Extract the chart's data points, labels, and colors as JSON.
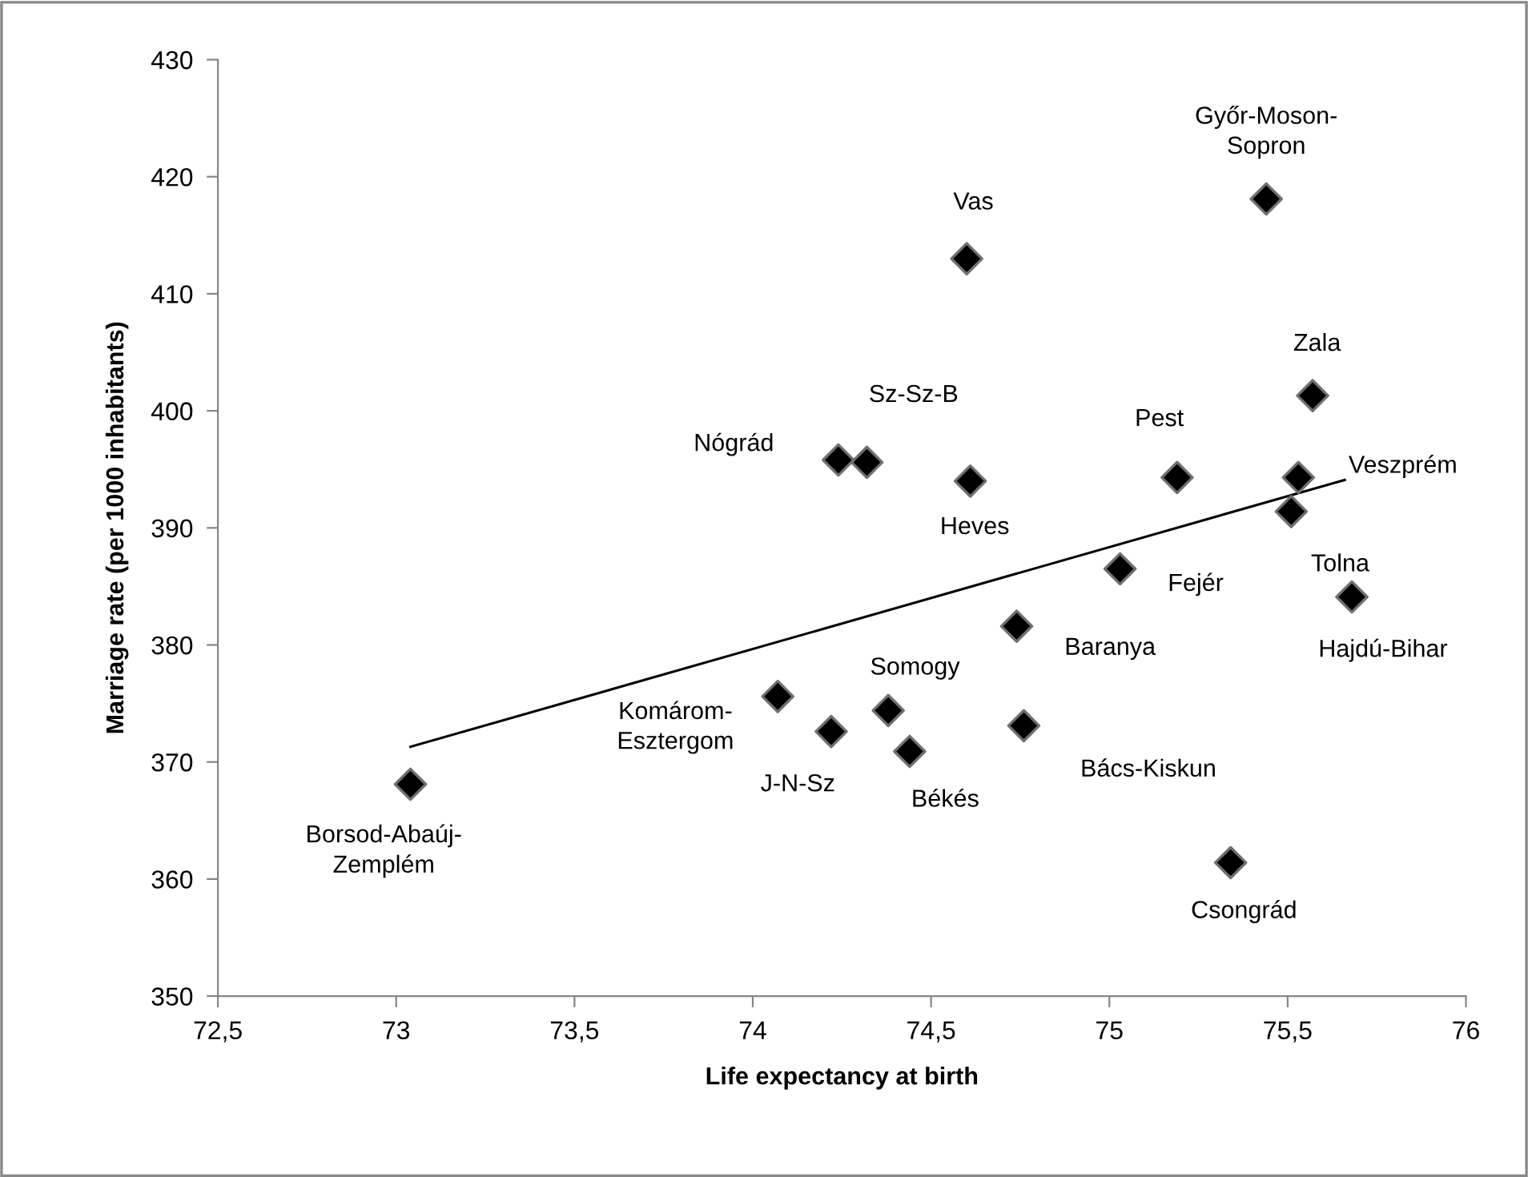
{
  "chart_data": {
    "type": "scatter",
    "xlabel": "Life expectancy at birth",
    "ylabel": "Marriage rate (per 1000 inhabitants)",
    "xlim": [
      72.5,
      76
    ],
    "ylim": [
      350,
      430
    ],
    "xticks": [
      {
        "value": 72.5,
        "label": "72,5"
      },
      73,
      {
        "value": 73.5,
        "label": "73,5"
      },
      74,
      {
        "value": 74.5,
        "label": "74,5"
      },
      75,
      {
        "value": 75.5,
        "label": "75,5"
      },
      76
    ],
    "yticks": [
      350,
      360,
      370,
      380,
      390,
      400,
      410,
      420,
      430
    ],
    "grid": false,
    "legend": false,
    "marker": "diamond",
    "series": [
      {
        "color": "#000000",
        "x": [
          73.04,
          74.07,
          74.22,
          74.38,
          74.44,
          74.76,
          74.74,
          75.03,
          75.68,
          75.34,
          75.51,
          75.53,
          75.57,
          75.19,
          74.61,
          74.6,
          75.44,
          74.32,
          74.24
        ],
        "values": [
          368.1,
          375.6,
          372.6,
          374.4,
          370.9,
          373.1,
          381.6,
          386.5,
          384.1,
          361.4,
          391.4,
          394.3,
          401.3,
          394.3,
          394.0,
          413.0,
          418.1,
          395.6,
          395.8
        ]
      },
      {
        "type": "line",
        "color": "#000000",
        "marker": "none",
        "line_style": "solid",
        "x": [
          73.04,
          75.66
        ],
        "values": [
          371.3,
          394.1
        ]
      }
    ],
    "annotations": [
      {
        "text": "Borsod-Abaúj-\nZemplém",
        "x": 73.04,
        "y": 368.1
      },
      {
        "text": "Komárom-\nEsztergom",
        "x": 74.07,
        "y": 375.6
      },
      {
        "text": "J-N-Sz",
        "x": 74.22,
        "y": 372.6
      },
      {
        "text": "Somogy",
        "x": 74.38,
        "y": 374.4
      },
      {
        "text": "Békés",
        "x": 74.44,
        "y": 370.9
      },
      {
        "text": "Bács-Kiskun",
        "x": 74.76,
        "y": 373.1
      },
      {
        "text": "Baranya",
        "x": 74.74,
        "y": 381.6
      },
      {
        "text": "Fejér",
        "x": 75.03,
        "y": 386.5
      },
      {
        "text": "Hajdú-Bihar",
        "x": 75.68,
        "y": 384.1
      },
      {
        "text": "Csongrád",
        "x": 75.34,
        "y": 361.4
      },
      {
        "text": "Tolna",
        "x": 75.51,
        "y": 391.4
      },
      {
        "text": "Veszprém",
        "x": 75.53,
        "y": 394.3
      },
      {
        "text": "Zala",
        "x": 75.57,
        "y": 401.3
      },
      {
        "text": "Pest",
        "x": 75.19,
        "y": 394.3
      },
      {
        "text": "Heves",
        "x": 74.61,
        "y": 394.0
      },
      {
        "text": "Vas",
        "x": 74.6,
        "y": 413.0
      },
      {
        "text": "Győr-Moson-\nSopron",
        "x": 75.44,
        "y": 418.1
      },
      {
        "text": "Sz-Sz-B",
        "x": 74.32,
        "y": 395.6
      },
      {
        "text": "Nógrád",
        "x": 74.24,
        "y": 395.8
      }
    ]
  }
}
